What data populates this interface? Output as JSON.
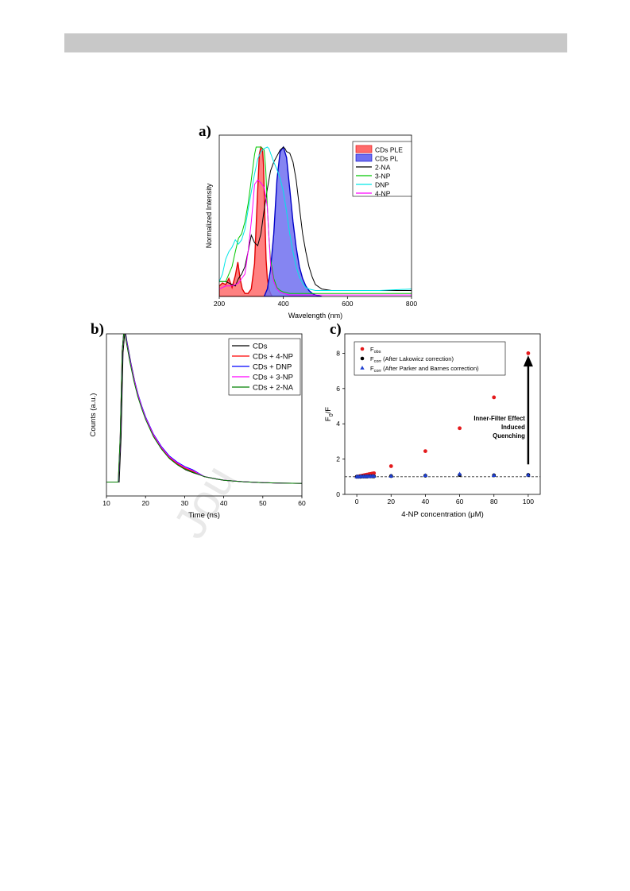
{
  "header": {
    "bar_color": "#c8c8c8"
  },
  "watermark": {
    "text": "Jou"
  },
  "panels": {
    "a": {
      "label": "a)"
    },
    "b": {
      "label": "b)"
    },
    "c": {
      "label": "c)"
    }
  },
  "chart_data": [
    {
      "id": "a",
      "type": "area",
      "title": "",
      "xlabel": "Wavelength (nm)",
      "ylabel": "Normalized Intensity",
      "xlim": [
        200,
        800
      ],
      "ylim": [
        0,
        1.08
      ],
      "xticks": [
        200,
        400,
        600,
        800
      ],
      "yticks_visible": false,
      "grid": false,
      "legend_position": "top-right",
      "series": [
        {
          "name": "CDs PLE",
          "kind": "fill",
          "color": "#ff6b6b",
          "edge": "#e00000",
          "x": [
            200,
            210,
            220,
            230,
            240,
            250,
            258,
            265,
            272,
            280,
            290,
            300,
            310,
            318,
            325,
            330,
            335,
            338,
            342,
            346,
            350,
            355,
            360,
            365
          ],
          "y": [
            0.07,
            0.09,
            0.08,
            0.12,
            0.06,
            0.14,
            0.23,
            0.12,
            0.05,
            0.02,
            0.02,
            0.05,
            0.22,
            0.62,
            0.95,
            1.0,
            0.99,
            0.88,
            0.55,
            0.25,
            0.12,
            0.05,
            0.02,
            0.0
          ]
        },
        {
          "name": "CDs PL",
          "kind": "fill",
          "color": "#7070f0",
          "edge": "#0000c8",
          "x": [
            340,
            350,
            360,
            370,
            380,
            390,
            400,
            410,
            420,
            430,
            440,
            450,
            460,
            470,
            480,
            490,
            500,
            520
          ],
          "y": [
            0.0,
            0.05,
            0.18,
            0.42,
            0.78,
            0.97,
            1.0,
            0.93,
            0.72,
            0.5,
            0.33,
            0.2,
            0.12,
            0.07,
            0.04,
            0.02,
            0.01,
            0.0
          ]
        },
        {
          "name": "2-NA",
          "kind": "line",
          "color": "#000000",
          "x": [
            200,
            220,
            240,
            250,
            260,
            270,
            280,
            290,
            300,
            310,
            320,
            330,
            340,
            350,
            360,
            370,
            380,
            390,
            400,
            405,
            410,
            420,
            430,
            440,
            450,
            460,
            470,
            480,
            490,
            500,
            520,
            550,
            600,
            650,
            700,
            750,
            800
          ],
          "y": [
            0.1,
            0.1,
            0.08,
            0.07,
            0.12,
            0.15,
            0.2,
            0.3,
            0.41,
            0.36,
            0.34,
            0.42,
            0.58,
            0.72,
            0.84,
            0.9,
            0.94,
            0.98,
            1.0,
            0.99,
            0.97,
            0.96,
            0.9,
            0.78,
            0.6,
            0.42,
            0.3,
            0.2,
            0.13,
            0.08,
            0.05,
            0.04,
            0.04,
            0.04,
            0.04,
            0.04,
            0.04
          ]
        },
        {
          "name": "3-NP",
          "kind": "line",
          "color": "#00c800",
          "x": [
            200,
            220,
            240,
            250,
            260,
            270,
            280,
            290,
            300,
            310,
            315,
            320,
            325,
            330,
            340,
            345,
            350,
            355,
            360,
            370,
            380,
            390,
            400,
            420,
            450,
            500,
            600,
            700,
            800
          ],
          "y": [
            0.1,
            0.1,
            0.2,
            0.3,
            0.39,
            0.42,
            0.5,
            0.62,
            0.78,
            0.95,
            1.0,
            1.0,
            1.0,
            1.0,
            0.98,
            0.85,
            0.6,
            0.4,
            0.25,
            0.12,
            0.06,
            0.04,
            0.03,
            0.02,
            0.02,
            0.02,
            0.02,
            0.02,
            0.02
          ]
        },
        {
          "name": "DNP",
          "kind": "line",
          "color": "#00e6e6",
          "x": [
            200,
            210,
            220,
            230,
            240,
            250,
            260,
            270,
            280,
            290,
            300,
            310,
            320,
            330,
            340,
            350,
            355,
            360,
            370,
            380,
            390,
            400,
            410,
            420,
            430,
            440,
            450,
            460,
            470,
            480,
            500,
            550,
            600,
            700,
            800
          ],
          "y": [
            0.1,
            0.15,
            0.25,
            0.3,
            0.33,
            0.38,
            0.35,
            0.38,
            0.45,
            0.58,
            0.7,
            0.82,
            0.92,
            0.97,
            0.99,
            1.0,
            0.99,
            0.96,
            0.9,
            0.85,
            0.79,
            0.7,
            0.57,
            0.42,
            0.3,
            0.2,
            0.13,
            0.09,
            0.06,
            0.05,
            0.04,
            0.04,
            0.04,
            0.04,
            0.05
          ]
        },
        {
          "name": "4-NP",
          "kind": "line",
          "color": "#ff00ff",
          "x": [
            200,
            220,
            240,
            260,
            270,
            280,
            290,
            300,
            305,
            310,
            320,
            330,
            340,
            350,
            355,
            360,
            370,
            380,
            390,
            400,
            420,
            440,
            460,
            500,
            600,
            700,
            800
          ],
          "y": [
            0.05,
            0.07,
            0.07,
            0.09,
            0.12,
            0.15,
            0.3,
            0.5,
            0.62,
            0.75,
            0.78,
            0.76,
            0.73,
            0.6,
            0.4,
            0.22,
            0.1,
            0.05,
            0.03,
            0.02,
            0.01,
            0.01,
            0.01,
            0.01,
            0.01,
            0.01,
            0.01
          ]
        }
      ]
    },
    {
      "id": "b",
      "type": "line",
      "title": "",
      "xlabel": "Time (ns)",
      "ylabel": "Counts (a.u.)",
      "xlim": [
        10,
        60
      ],
      "ylim": [
        0,
        1.05
      ],
      "xticks": [
        10,
        20,
        30,
        40,
        50,
        60
      ],
      "yticks_visible": false,
      "grid": false,
      "legend_position": "top-right",
      "series": [
        {
          "name": "CDs",
          "color": "#000000",
          "offset": 0.0,
          "x": [
            10,
            13,
            13.5,
            14,
            14.5,
            15,
            16,
            17,
            18,
            19,
            20,
            22,
            24,
            26,
            28,
            30,
            32,
            35,
            38,
            40,
            45,
            50,
            55,
            60
          ],
          "y": [
            0.01,
            0.01,
            0.3,
            0.85,
            1.0,
            0.92,
            0.78,
            0.66,
            0.56,
            0.48,
            0.41,
            0.3,
            0.22,
            0.16,
            0.12,
            0.09,
            0.07,
            0.045,
            0.03,
            0.022,
            0.012,
            0.006,
            0.003,
            0.002
          ]
        },
        {
          "name": "CDs + 4-NP",
          "color": "#ff0000",
          "offset": 0.01,
          "x": [
            10,
            13,
            13.5,
            14,
            14.5,
            15,
            16,
            17,
            18,
            19,
            20,
            22,
            24,
            26,
            28,
            30,
            32,
            35,
            38,
            40,
            45,
            50,
            55,
            60
          ],
          "y": [
            0.01,
            0.01,
            0.3,
            0.85,
            1.0,
            0.92,
            0.78,
            0.66,
            0.56,
            0.48,
            0.41,
            0.3,
            0.22,
            0.16,
            0.12,
            0.09,
            0.07,
            0.045,
            0.03,
            0.022,
            0.012,
            0.006,
            0.003,
            0.002
          ]
        },
        {
          "name": "CDs + DNP",
          "color": "#0000ff",
          "offset": 0.02,
          "x": [
            10,
            13,
            13.5,
            14,
            14.5,
            15,
            16,
            17,
            18,
            19,
            20,
            22,
            24,
            26,
            28,
            30,
            32,
            35,
            38,
            40,
            45,
            50,
            55,
            60
          ],
          "y": [
            0.01,
            0.01,
            0.3,
            0.85,
            1.0,
            0.92,
            0.78,
            0.66,
            0.56,
            0.48,
            0.41,
            0.3,
            0.22,
            0.16,
            0.12,
            0.09,
            0.07,
            0.045,
            0.03,
            0.022,
            0.012,
            0.006,
            0.003,
            0.002
          ]
        },
        {
          "name": "CDs + 3-NP",
          "color": "#ff00ff",
          "offset": 0.015,
          "x": [
            10,
            13,
            13.5,
            14,
            14.5,
            15,
            16,
            17,
            18,
            19,
            20,
            22,
            24,
            26,
            28,
            30,
            32,
            35,
            38,
            40,
            45,
            50,
            55,
            60
          ],
          "y": [
            0.01,
            0.01,
            0.3,
            0.85,
            1.0,
            0.92,
            0.78,
            0.66,
            0.56,
            0.48,
            0.41,
            0.3,
            0.22,
            0.16,
            0.12,
            0.09,
            0.07,
            0.045,
            0.03,
            0.022,
            0.012,
            0.006,
            0.003,
            0.002
          ]
        },
        {
          "name": "CDs + 2-NA",
          "color": "#008000",
          "offset": 0.005,
          "x": [
            10,
            13,
            13.5,
            14,
            14.5,
            15,
            16,
            17,
            18,
            19,
            20,
            22,
            24,
            26,
            28,
            30,
            32,
            35,
            38,
            40,
            45,
            50,
            55,
            60
          ],
          "y": [
            0.01,
            0.01,
            0.3,
            0.85,
            1.0,
            0.92,
            0.78,
            0.66,
            0.56,
            0.48,
            0.41,
            0.3,
            0.22,
            0.16,
            0.12,
            0.09,
            0.07,
            0.045,
            0.03,
            0.022,
            0.012,
            0.006,
            0.003,
            0.002
          ]
        }
      ]
    },
    {
      "id": "c",
      "type": "scatter",
      "title": "",
      "xlabel": "4-NP concentration (μM)",
      "ylabel_main": "F",
      "ylabel_sub": "0",
      "ylabel_tail": "/F",
      "xlim": [
        -7,
        107
      ],
      "ylim": [
        0,
        9.1
      ],
      "xticks": [
        0,
        20,
        40,
        60,
        80,
        100
      ],
      "yticks": [
        0,
        2,
        4,
        6,
        8
      ],
      "reference_line": 1,
      "grid": false,
      "legend_position": "top-left",
      "series": [
        {
          "name_main": "F",
          "name_sub": "obs",
          "name_tail": "",
          "marker": "circle",
          "color": "#e41a1c",
          "x": [
            0,
            1,
            2,
            3,
            4,
            5,
            6,
            7,
            8,
            9,
            10,
            20,
            40,
            60,
            80,
            100
          ],
          "y": [
            1.0,
            1.02,
            1.04,
            1.06,
            1.08,
            1.1,
            1.12,
            1.14,
            1.16,
            1.18,
            1.2,
            1.6,
            2.45,
            3.75,
            5.5,
            8.0
          ]
        },
        {
          "name_main": "F",
          "name_sub": "corr",
          "name_tail": " (After Lakowicz correction)",
          "marker": "circle",
          "color": "#000000",
          "x": [
            0,
            1,
            2,
            3,
            4,
            5,
            6,
            7,
            8,
            9,
            10,
            20,
            40,
            60,
            80,
            100
          ],
          "y": [
            1.0,
            1.0,
            1.0,
            1.01,
            1.01,
            1.01,
            1.01,
            1.02,
            1.02,
            1.02,
            1.02,
            1.04,
            1.06,
            1.1,
            1.08,
            1.1
          ]
        },
        {
          "name_main": "F",
          "name_sub": "corr",
          "name_tail": " (After Parker and Barnes correction)",
          "marker": "triangle",
          "color": "#1f3fd0",
          "x": [
            0,
            1,
            2,
            3,
            4,
            5,
            6,
            7,
            8,
            9,
            10,
            20,
            40,
            60,
            80,
            100
          ],
          "y": [
            1.0,
            1.0,
            1.01,
            1.01,
            1.01,
            1.02,
            1.02,
            1.02,
            1.02,
            1.03,
            1.03,
            1.04,
            1.07,
            1.15,
            1.08,
            1.1
          ]
        }
      ],
      "annotation": {
        "lines": [
          "Inner-Filter Effect",
          "Induced",
          "Quenching"
        ],
        "arrow_from": [
          100,
          1.7
        ],
        "arrow_to": [
          100,
          7.7
        ]
      }
    }
  ]
}
